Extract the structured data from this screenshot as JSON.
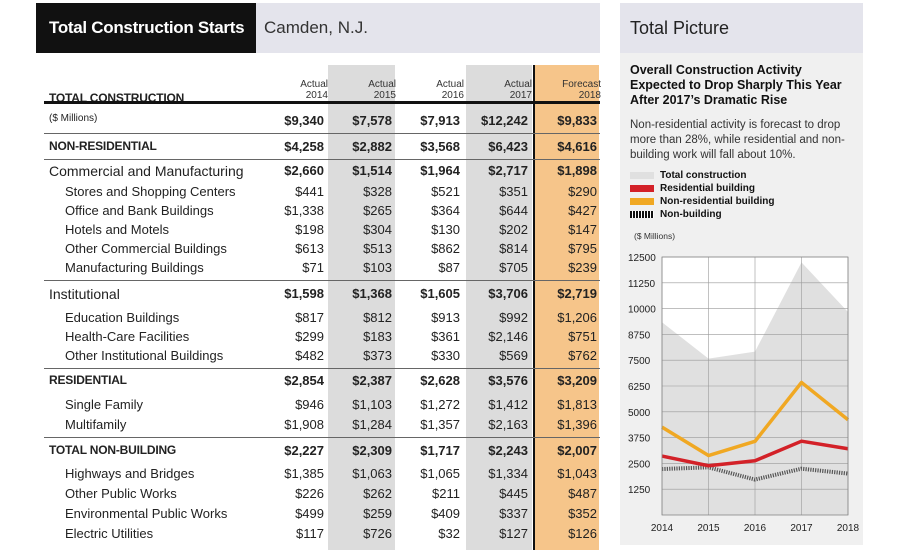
{
  "table": {
    "title": "Total Construction Starts",
    "location": "Camden, N.J.",
    "header_label": "TOTAL CONSTRUCTION",
    "columns": [
      {
        "kind": "Actual",
        "year": "2014"
      },
      {
        "kind": "Actual",
        "year": "2015"
      },
      {
        "kind": "Actual",
        "year": "2016"
      },
      {
        "kind": "Actual",
        "year": "2017"
      },
      {
        "kind": "Forecast",
        "year": "2018"
      }
    ],
    "rows": [
      {
        "label": "($ Millions)",
        "values": [
          "$9,340",
          "$7,578",
          "$7,913",
          "$12,242",
          "$9,833"
        ]
      },
      {
        "label": "NON-RESIDENTIAL",
        "values": [
          "$4,258",
          "$2,882",
          "$3,568",
          "$6,423",
          "$4,616"
        ]
      },
      {
        "label": "Commercial and Manufacturing",
        "values": [
          "$2,660",
          "$1,514",
          "$1,964",
          "$2,717",
          "$1,898"
        ]
      },
      {
        "label": "Stores and Shopping Centers",
        "values": [
          "$441",
          "$328",
          "$521",
          "$351",
          "$290"
        ]
      },
      {
        "label": "Office and Bank Buildings",
        "values": [
          "$1,338",
          "$265",
          "$364",
          "$644",
          "$427"
        ]
      },
      {
        "label": "Hotels and Motels",
        "values": [
          "$198",
          "$304",
          "$130",
          "$202",
          "$147"
        ]
      },
      {
        "label": "Other Commercial Buildings",
        "values": [
          "$613",
          "$513",
          "$862",
          "$814",
          "$795"
        ]
      },
      {
        "label": "Manufacturing Buildings",
        "values": [
          "$71",
          "$103",
          "$87",
          "$705",
          "$239"
        ]
      },
      {
        "label": "Institutional",
        "values": [
          "$1,598",
          "$1,368",
          "$1,605",
          "$3,706",
          "$2,719"
        ]
      },
      {
        "label": "Education Buildings",
        "values": [
          "$817",
          "$812",
          "$913",
          "$992",
          "$1,206"
        ]
      },
      {
        "label": "Health-Care Facilities",
        "values": [
          "$299",
          "$183",
          "$361",
          "$2,146",
          "$751"
        ]
      },
      {
        "label": "Other Institutional Buildings",
        "values": [
          "$482",
          "$373",
          "$330",
          "$569",
          "$762"
        ]
      },
      {
        "label": "RESIDENTIAL",
        "values": [
          "$2,854",
          "$2,387",
          "$2,628",
          "$3,576",
          "$3,209"
        ]
      },
      {
        "label": "Single Family",
        "values": [
          "$946",
          "$1,103",
          "$1,272",
          "$1,412",
          "$1,813"
        ]
      },
      {
        "label": "Multifamily",
        "values": [
          "$1,908",
          "$1,284",
          "$1,357",
          "$2,163",
          "$1,396"
        ]
      },
      {
        "label": "TOTAL NON-BUILDING",
        "values": [
          "$2,227",
          "$2,309",
          "$1,717",
          "$2,243",
          "$2,007"
        ]
      },
      {
        "label": "Highways and Bridges",
        "values": [
          "$1,385",
          "$1,063",
          "$1,065",
          "$1,334",
          "$1,043"
        ]
      },
      {
        "label": "Other Public Works",
        "values": [
          "$226",
          "$262",
          "$211",
          "$445",
          "$487"
        ]
      },
      {
        "label": "Environmental Public Works",
        "values": [
          "$499",
          "$259",
          "$409",
          "$337",
          "$352"
        ]
      },
      {
        "label": "Electric Utilities",
        "values": [
          "$117",
          "$726",
          "$32",
          "$127",
          "$126"
        ]
      }
    ]
  },
  "panel": {
    "title": "Total Picture",
    "headline": "Overall Construction Activity Expected to Drop Sharply This Year After 2017’s Dramatic Rise",
    "subtext": "Non-residential activity is forecast to drop more than 28%, while residential and non-building work will fall about 10%.",
    "units": "($ Millions)"
  },
  "colors": {
    "total": "#e0e0e0",
    "residential": "#d32128",
    "non_residential": "#f0a823",
    "non_building": "#999999",
    "forecast_band": "#f6c58a",
    "shaded_band": "#dcdcdc"
  },
  "chart_data": {
    "type": "line",
    "title": "Overall Construction Activity Expected to Drop Sharply This Year After 2017’s Dramatic Rise",
    "ylabel": "($ Millions)",
    "x": [
      "2014",
      "2015",
      "2016",
      "2017",
      "2018"
    ],
    "ylim": [
      0,
      12500
    ],
    "yticks": [
      1250,
      2500,
      3750,
      5000,
      6250,
      7500,
      8750,
      10000,
      11250,
      12500
    ],
    "ytick_labels": [
      "1250",
      "2500",
      "3750",
      "5000",
      "6250",
      "7500",
      "8750",
      "10000",
      "11250",
      "12500"
    ],
    "grid": true,
    "legend": "top",
    "series": [
      {
        "name": "Total construction",
        "style": "area",
        "values": [
          9340,
          7578,
          7913,
          12242,
          9833
        ]
      },
      {
        "name": "Residential building",
        "style": "line",
        "values": [
          2854,
          2387,
          2628,
          3576,
          3209
        ]
      },
      {
        "name": "Non-residential building",
        "style": "line",
        "values": [
          4258,
          2882,
          3568,
          6423,
          4616
        ]
      },
      {
        "name": "Non-building",
        "style": "hatched",
        "values": [
          2227,
          2309,
          1717,
          2243,
          2007
        ]
      }
    ]
  }
}
